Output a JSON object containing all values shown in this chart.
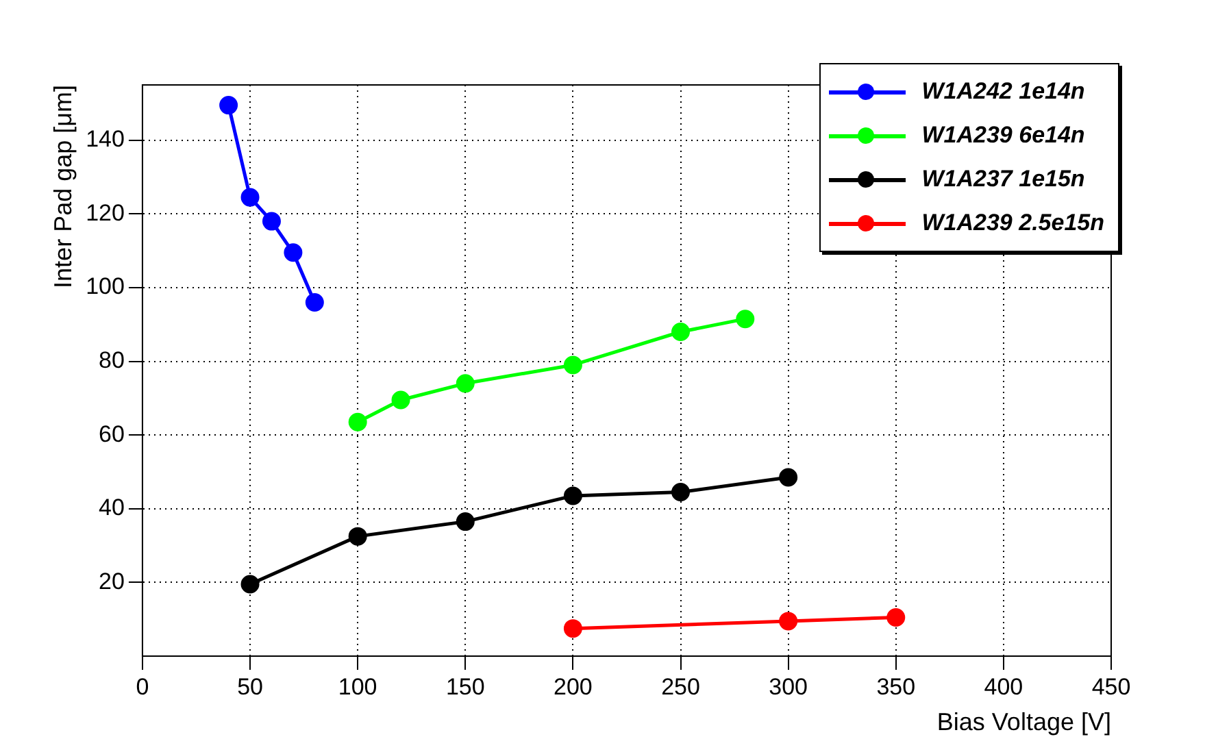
{
  "chart_data": {
    "type": "line",
    "xlabel": "Bias Voltage [V]",
    "ylabel": "Inter Pad gap [μm]",
    "xlim": [
      0,
      450
    ],
    "xticks": [
      0,
      50,
      100,
      150,
      200,
      250,
      300,
      350,
      400,
      450
    ],
    "ylim": [
      0,
      155
    ],
    "yticks": [
      20,
      40,
      60,
      80,
      100,
      120,
      140
    ],
    "grid": true,
    "legend": "top right",
    "marker": "circle",
    "line_style": "solid",
    "series": [
      {
        "name": "W1A242 1e14n",
        "color": "#0000ff",
        "x": [
          40,
          50,
          60,
          70,
          80
        ],
        "values": [
          149.5,
          124.5,
          118,
          109.5,
          96
        ]
      },
      {
        "name": "W1A239 6e14n",
        "color": "#00ff00",
        "x": [
          100,
          120,
          150,
          200,
          250,
          280
        ],
        "values": [
          63.5,
          69.5,
          74,
          79,
          88,
          91.5
        ]
      },
      {
        "name": "W1A237 1e15n",
        "color": "#000000",
        "x": [
          50,
          100,
          150,
          200,
          250,
          300
        ],
        "values": [
          19.5,
          32.5,
          36.5,
          43.5,
          44.5,
          48.5
        ]
      },
      {
        "name": "W1A239 2.5e15n",
        "color": "#ff0000",
        "x": [
          200,
          300,
          350
        ],
        "values": [
          7.5,
          9.5,
          10.5
        ]
      }
    ]
  }
}
